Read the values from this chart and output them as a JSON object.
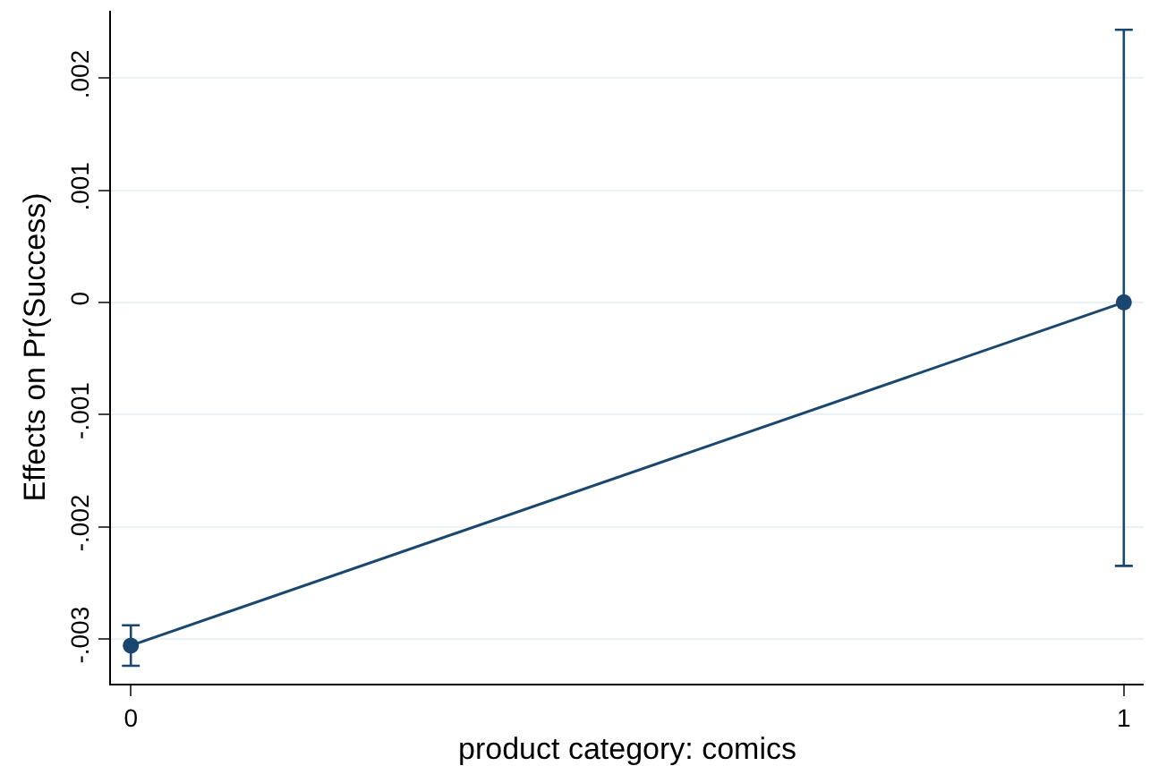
{
  "chart_data": {
    "type": "line",
    "xlabel": "product category: comics",
    "ylabel": "Effects on Pr(Success)",
    "x": [
      0,
      1
    ],
    "series": [
      {
        "color": "#1a476f",
        "values": [
          -0.00306,
          0
        ],
        "errors": [
          [
            -0.00324,
            -0.00288
          ],
          [
            -0.00235,
            0.00243
          ]
        ]
      }
    ],
    "xlim": [
      -0.02,
      1.02
    ],
    "xticks": [
      0,
      1
    ],
    "ylim": [
      -0.0034,
      0.0026
    ],
    "yticks": [
      {
        "value": -0.003,
        "label": "-.003"
      },
      {
        "value": -0.002,
        "label": "-.002"
      },
      {
        "value": -0.001,
        "label": "-.001"
      },
      0,
      {
        "value": 0.001,
        "label": ".001"
      },
      {
        "value": 0.002,
        "label": ".002"
      }
    ],
    "grid": "y",
    "marker": "circle",
    "line_style": "solid"
  }
}
